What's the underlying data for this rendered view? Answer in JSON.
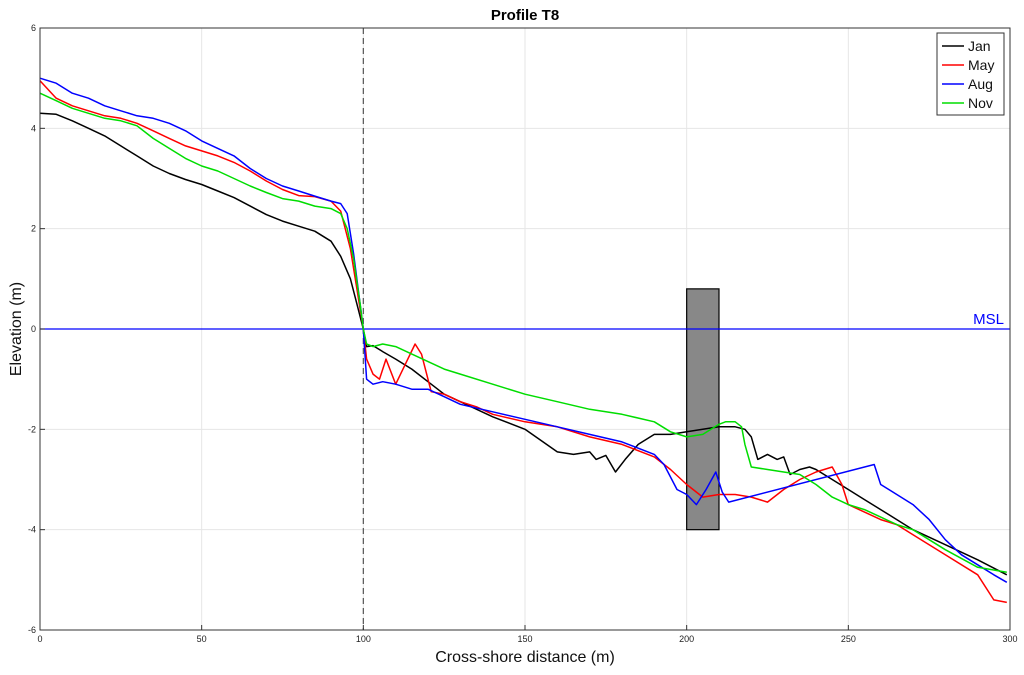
{
  "chart_data": {
    "type": "line",
    "title": "Profile T8",
    "xlabel": "Cross-shore distance (m)",
    "ylabel": "Elevation (m)",
    "xlim": [
      0,
      300
    ],
    "ylim": [
      -6,
      6
    ],
    "xticks": [
      0,
      50,
      100,
      150,
      200,
      250,
      300
    ],
    "yticks": [
      -6,
      -4,
      -2,
      0,
      2,
      4,
      6
    ],
    "grid": true,
    "legend_position": "top-right",
    "series": [
      {
        "name": "Jan",
        "color": "#000000",
        "x": [
          0,
          5,
          10,
          15,
          20,
          25,
          30,
          35,
          40,
          45,
          50,
          55,
          60,
          65,
          70,
          75,
          80,
          85,
          90,
          93,
          96,
          98,
          100,
          101,
          103,
          106,
          110,
          115,
          120,
          125,
          130,
          140,
          150,
          160,
          165,
          170,
          172,
          175,
          178,
          181,
          185,
          190,
          195,
          200,
          205,
          210,
          215,
          218,
          220,
          222,
          225,
          228,
          230,
          232,
          235,
          238,
          240,
          245,
          250,
          255,
          260,
          265,
          270,
          280,
          290,
          299
        ],
        "y": [
          4.3,
          4.28,
          4.15,
          4.0,
          3.85,
          3.65,
          3.45,
          3.25,
          3.1,
          2.98,
          2.88,
          2.75,
          2.62,
          2.45,
          2.28,
          2.15,
          2.05,
          1.95,
          1.75,
          1.45,
          1.0,
          0.5,
          0.0,
          -0.35,
          -0.33,
          -0.45,
          -0.6,
          -0.8,
          -1.05,
          -1.3,
          -1.45,
          -1.75,
          -2.0,
          -2.45,
          -2.5,
          -2.45,
          -2.6,
          -2.52,
          -2.85,
          -2.6,
          -2.3,
          -2.1,
          -2.1,
          -2.05,
          -2.0,
          -1.95,
          -1.95,
          -2.0,
          -2.15,
          -2.6,
          -2.5,
          -2.6,
          -2.55,
          -2.9,
          -2.8,
          -2.75,
          -2.8,
          -3.0,
          -3.2,
          -3.4,
          -3.6,
          -3.8,
          -4.0,
          -4.3,
          -4.6,
          -4.9
        ]
      },
      {
        "name": "May",
        "color": "#ff0000",
        "x": [
          0,
          5,
          10,
          15,
          20,
          25,
          30,
          35,
          40,
          45,
          50,
          55,
          60,
          65,
          70,
          75,
          80,
          85,
          90,
          93,
          96,
          98,
          100,
          101,
          103,
          105,
          107,
          110,
          113,
          116,
          118,
          121,
          125,
          130,
          135,
          140,
          150,
          160,
          170,
          180,
          190,
          195,
          200,
          205,
          210,
          215,
          220,
          225,
          230,
          235,
          240,
          245,
          248,
          250,
          255,
          260,
          265,
          270,
          280,
          290,
          295,
          299
        ],
        "y": [
          4.95,
          4.6,
          4.45,
          4.35,
          4.25,
          4.2,
          4.1,
          3.95,
          3.8,
          3.65,
          3.55,
          3.45,
          3.32,
          3.15,
          2.95,
          2.78,
          2.66,
          2.64,
          2.55,
          2.35,
          1.6,
          0.8,
          0.0,
          -0.6,
          -0.9,
          -1.0,
          -0.6,
          -1.1,
          -0.7,
          -0.3,
          -0.5,
          -1.25,
          -1.3,
          -1.45,
          -1.55,
          -1.7,
          -1.85,
          -1.95,
          -2.15,
          -2.3,
          -2.55,
          -2.8,
          -3.1,
          -3.35,
          -3.3,
          -3.3,
          -3.35,
          -3.45,
          -3.2,
          -3.0,
          -2.85,
          -2.75,
          -3.1,
          -3.5,
          -3.65,
          -3.8,
          -3.9,
          -4.1,
          -4.5,
          -4.9,
          -5.4,
          -5.45
        ]
      },
      {
        "name": "Aug",
        "color": "#0000ff",
        "x": [
          0,
          5,
          10,
          15,
          20,
          25,
          30,
          35,
          40,
          45,
          50,
          55,
          60,
          65,
          70,
          75,
          80,
          85,
          90,
          93,
          95,
          97,
          99,
          100,
          101,
          103,
          106,
          110,
          115,
          120,
          125,
          130,
          140,
          150,
          160,
          170,
          180,
          190,
          193,
          197,
          200,
          203,
          206,
          209,
          211,
          213,
          258,
          260,
          265,
          270,
          275,
          280,
          285,
          290,
          295,
          299
        ],
        "y": [
          5.0,
          4.9,
          4.7,
          4.6,
          4.45,
          4.35,
          4.25,
          4.2,
          4.1,
          3.95,
          3.75,
          3.6,
          3.45,
          3.2,
          3.0,
          2.85,
          2.75,
          2.65,
          2.55,
          2.5,
          2.3,
          1.5,
          0.5,
          0.0,
          -1.0,
          -1.1,
          -1.05,
          -1.1,
          -1.2,
          -1.2,
          -1.35,
          -1.5,
          -1.65,
          -1.8,
          -1.95,
          -2.1,
          -2.25,
          -2.5,
          -2.7,
          -3.2,
          -3.3,
          -3.5,
          -3.2,
          -2.85,
          -3.25,
          -3.45,
          -2.7,
          -3.1,
          -3.3,
          -3.5,
          -3.8,
          -4.2,
          -4.5,
          -4.7,
          -4.9,
          -5.05
        ]
      },
      {
        "name": "Nov",
        "color": "#00dd00",
        "x": [
          0,
          5,
          10,
          15,
          20,
          25,
          30,
          35,
          40,
          45,
          50,
          55,
          60,
          65,
          70,
          75,
          80,
          85,
          90,
          93,
          95,
          97,
          99,
          100,
          101,
          103,
          106,
          110,
          115,
          120,
          125,
          130,
          140,
          150,
          160,
          170,
          180,
          190,
          195,
          200,
          205,
          210,
          212,
          215,
          217,
          218,
          220,
          225,
          230,
          235,
          240,
          245,
          250,
          255,
          260,
          265,
          270,
          280,
          290,
          299
        ],
        "y": [
          4.7,
          4.55,
          4.4,
          4.3,
          4.2,
          4.15,
          4.05,
          3.8,
          3.6,
          3.4,
          3.25,
          3.15,
          3.0,
          2.85,
          2.72,
          2.6,
          2.55,
          2.45,
          2.4,
          2.3,
          2.0,
          1.4,
          0.5,
          0.0,
          -0.3,
          -0.35,
          -0.3,
          -0.35,
          -0.5,
          -0.65,
          -0.8,
          -0.9,
          -1.1,
          -1.3,
          -1.45,
          -1.6,
          -1.7,
          -1.85,
          -2.05,
          -2.15,
          -2.1,
          -1.9,
          -1.85,
          -1.85,
          -1.95,
          -2.3,
          -2.75,
          -2.8,
          -2.85,
          -2.9,
          -3.1,
          -3.35,
          -3.5,
          -3.6,
          -3.75,
          -3.9,
          -4.0,
          -4.4,
          -4.75,
          -4.85
        ]
      }
    ],
    "reference_lines": [
      {
        "type": "horizontal",
        "y": 0,
        "color": "#0000ff",
        "label": "MSL"
      },
      {
        "type": "vertical",
        "x": 100,
        "color": "#555555",
        "style": "dashed"
      }
    ],
    "structure": {
      "x_start": 200,
      "x_end": 210,
      "y_bottom": -4,
      "y_top": 0.8,
      "color": "#888888"
    }
  }
}
